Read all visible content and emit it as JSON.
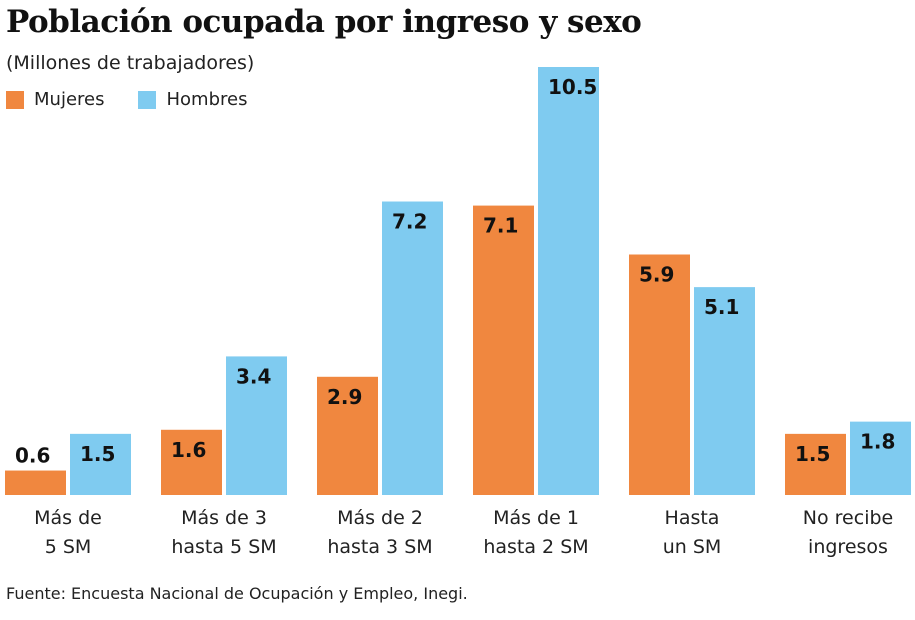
{
  "chart_data": {
    "type": "bar",
    "title": "Población ocupada por ingreso y sexo",
    "subtitle": "(Millones de trabajadores)",
    "categories": [
      [
        "Más de",
        "5 SM"
      ],
      [
        "Más de 3",
        "hasta 5 SM"
      ],
      [
        "Más de 2",
        "hasta 3 SM"
      ],
      [
        "Más de 1",
        "hasta 2 SM"
      ],
      [
        "Hasta",
        "un SM"
      ],
      [
        "No recibe",
        "ingresos"
      ]
    ],
    "series": [
      {
        "name": "Mujeres",
        "color": "#f0873f",
        "values": [
          0.6,
          1.6,
          2.9,
          7.1,
          5.9,
          1.5
        ]
      },
      {
        "name": "Hombres",
        "color": "#7fcbf0",
        "values": [
          1.5,
          3.4,
          7.2,
          10.5,
          5.1,
          1.8
        ]
      }
    ],
    "ylim": [
      0,
      10.5
    ],
    "grid": false,
    "legend": "top-left",
    "source": "Fuente: Encuesta Nacional de Ocupación y Empleo, Inegi."
  }
}
